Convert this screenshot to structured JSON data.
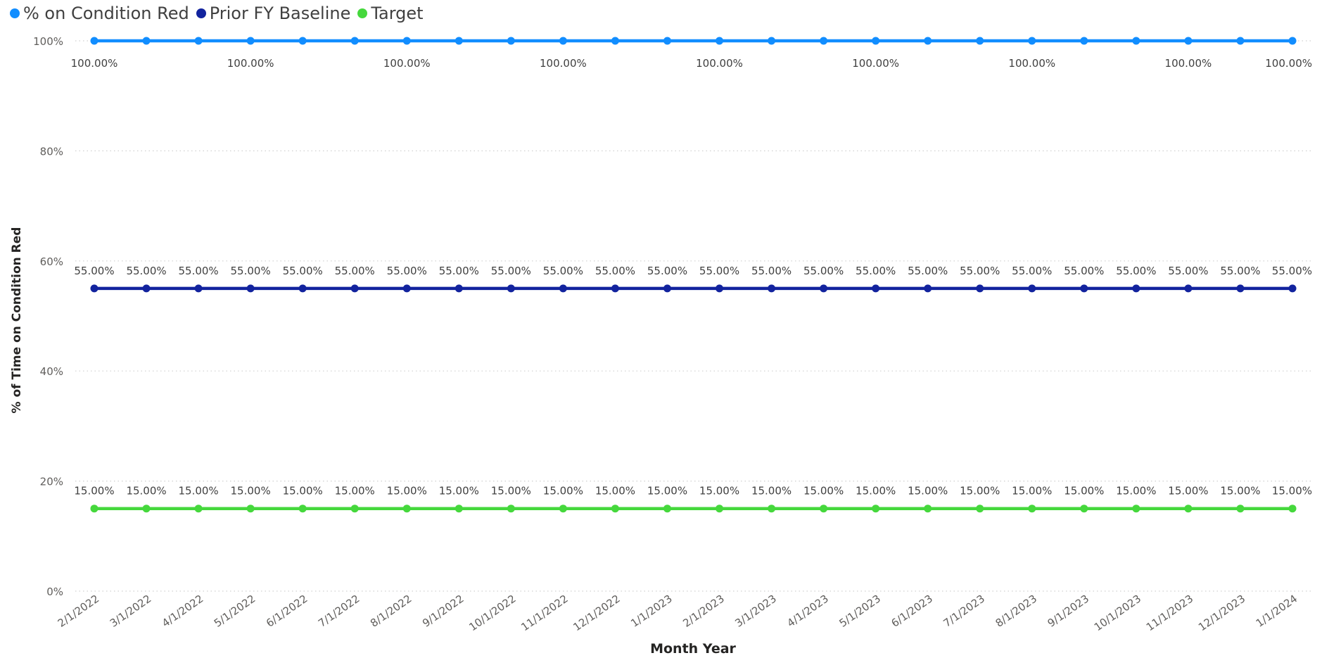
{
  "chart_data": {
    "type": "line",
    "title": "",
    "xlabel": "Month Year",
    "ylabel": "% of Time on Condition Red",
    "ylim": [
      0,
      100
    ],
    "yticks": [
      0,
      20,
      40,
      60,
      80,
      100
    ],
    "ytick_labels": [
      "0%",
      "20%",
      "40%",
      "60%",
      "80%",
      "100%"
    ],
    "grid": true,
    "legend_position": "top-left",
    "categories": [
      "2/1/2022",
      "3/1/2022",
      "4/1/2022",
      "5/1/2022",
      "6/1/2022",
      "7/1/2022",
      "8/1/2022",
      "9/1/2022",
      "10/1/2022",
      "11/1/2022",
      "12/1/2022",
      "1/1/2023",
      "2/1/2023",
      "3/1/2023",
      "4/1/2023",
      "5/1/2023",
      "6/1/2023",
      "7/1/2023",
      "8/1/2023",
      "9/1/2023",
      "10/1/2023",
      "11/1/2023",
      "12/1/2023",
      "1/1/2024"
    ],
    "series": [
      {
        "name": "% on Condition Red",
        "color": "#118DFF",
        "values": [
          100,
          100,
          100,
          100,
          100,
          100,
          100,
          100,
          100,
          100,
          100,
          100,
          100,
          100,
          100,
          100,
          100,
          100,
          100,
          100,
          100,
          100,
          100,
          100
        ],
        "data_labels": [
          "100.00%",
          "",
          "",
          "100.00%",
          "",
          "",
          "100.00%",
          "",
          "",
          "100.00%",
          "",
          "",
          "100.00%",
          "",
          "",
          "100.00%",
          "",
          "",
          "100.00%",
          "",
          "",
          "100.00%",
          "",
          "100.00%"
        ]
      },
      {
        "name": "Prior FY Baseline",
        "color": "#12239E",
        "values": [
          55,
          55,
          55,
          55,
          55,
          55,
          55,
          55,
          55,
          55,
          55,
          55,
          55,
          55,
          55,
          55,
          55,
          55,
          55,
          55,
          55,
          55,
          55,
          55
        ],
        "data_labels": [
          "55.00%",
          "55.00%",
          "55.00%",
          "55.00%",
          "55.00%",
          "55.00%",
          "55.00%",
          "55.00%",
          "55.00%",
          "55.00%",
          "55.00%",
          "55.00%",
          "55.00%",
          "55.00%",
          "55.00%",
          "55.00%",
          "55.00%",
          "55.00%",
          "55.00%",
          "55.00%",
          "55.00%",
          "55.00%",
          "55.00%",
          "55.00%"
        ]
      },
      {
        "name": "Target",
        "color": "#45D83C",
        "values": [
          15,
          15,
          15,
          15,
          15,
          15,
          15,
          15,
          15,
          15,
          15,
          15,
          15,
          15,
          15,
          15,
          15,
          15,
          15,
          15,
          15,
          15,
          15,
          15
        ],
        "data_labels": [
          "15.00%",
          "15.00%",
          "15.00%",
          "15.00%",
          "15.00%",
          "15.00%",
          "15.00%",
          "15.00%",
          "15.00%",
          "15.00%",
          "15.00%",
          "15.00%",
          "15.00%",
          "15.00%",
          "15.00%",
          "15.00%",
          "15.00%",
          "15.00%",
          "15.00%",
          "15.00%",
          "15.00%",
          "15.00%",
          "15.00%",
          "15.00%"
        ]
      }
    ]
  }
}
